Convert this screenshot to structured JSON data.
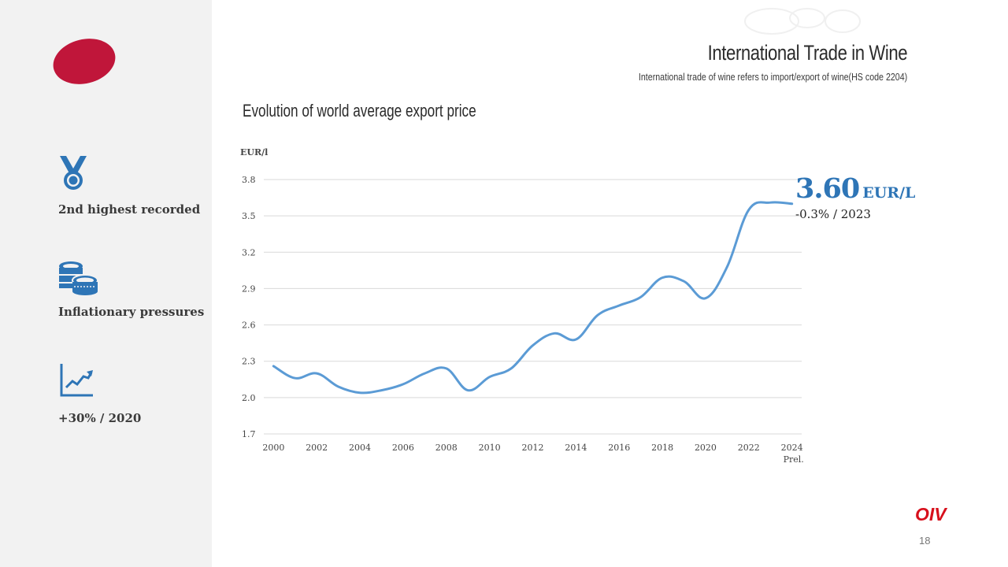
{
  "header": {
    "title": "International Trade in Wine",
    "subtitle": "International trade of wine refers to import/export of wine(HS code 2204)"
  },
  "sidebar": {
    "items": [
      {
        "icon": "medal-icon",
        "label": "2nd  highest recorded"
      },
      {
        "icon": "coins-icon",
        "label": "Inflationary pressures"
      },
      {
        "icon": "trend-up-icon",
        "label": "+30% / 2020"
      }
    ]
  },
  "callout": {
    "value": "3.60",
    "unit": "EUR/L",
    "change": "-0.3% / 2023"
  },
  "footer": {
    "logo": "OIV",
    "page": "18"
  },
  "colors": {
    "accent": "#2e75b6",
    "line": "#5b9bd5",
    "brand_red": "#c0163a",
    "sidebar_bg": "#f2f2f2"
  },
  "chart_data": {
    "type": "line",
    "title": "Evolution of world average export price",
    "ylabel": "EUR/l",
    "xlabel": "",
    "ylim": [
      1.7,
      3.8
    ],
    "yticks": [
      1.7,
      2.0,
      2.3,
      2.6,
      2.9,
      3.2,
      3.5,
      3.8
    ],
    "xticks": [
      2000,
      2002,
      2004,
      2006,
      2008,
      2010,
      2012,
      2014,
      2016,
      2018,
      2020,
      2022,
      2024
    ],
    "xtick_labels": [
      "2000",
      "2002",
      "2004",
      "2006",
      "2008",
      "2010",
      "2012",
      "2014",
      "2016",
      "2018",
      "2020",
      "2022",
      "2024"
    ],
    "xtick_note": "Prel.",
    "grid": true,
    "series": [
      {
        "name": "World average export price",
        "x": [
          2000,
          2001,
          2002,
          2003,
          2004,
          2005,
          2006,
          2007,
          2008,
          2009,
          2010,
          2011,
          2012,
          2013,
          2014,
          2015,
          2016,
          2017,
          2018,
          2019,
          2020,
          2021,
          2022,
          2023,
          2024
        ],
        "values": [
          2.26,
          2.16,
          2.2,
          2.09,
          2.04,
          2.06,
          2.11,
          2.2,
          2.24,
          2.06,
          2.17,
          2.24,
          2.43,
          2.53,
          2.48,
          2.68,
          2.76,
          2.83,
          2.99,
          2.96,
          2.82,
          3.08,
          3.55,
          3.61,
          3.6
        ]
      }
    ]
  }
}
